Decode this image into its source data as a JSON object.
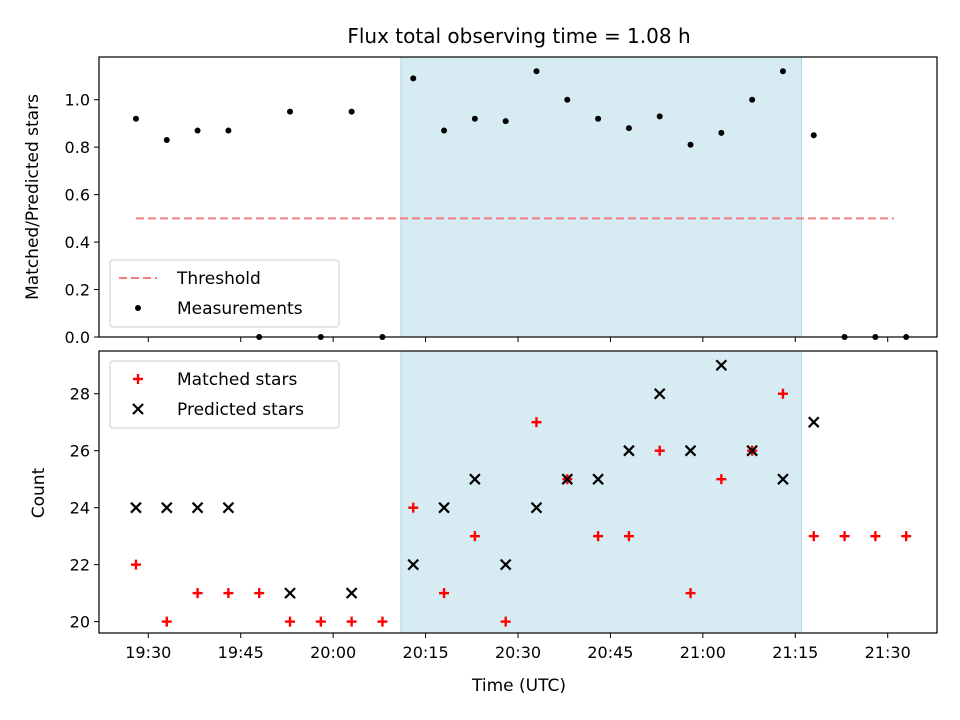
{
  "title": "Flux total observing time = 1.08 h",
  "colors": {
    "span": "#add8e6",
    "threshold": "#f08080",
    "matched": "#ff0000",
    "predicted": "#000000",
    "measurement": "#000000"
  },
  "chart_data": [
    {
      "type": "scatter",
      "ylabel": "Matched/Predicted stars",
      "ylim": [
        0,
        1.18
      ],
      "yticks": [
        0.0,
        0.2,
        0.4,
        0.6,
        0.8,
        1.0
      ],
      "ytick_labels": [
        "0.0",
        "0.2",
        "0.4",
        "0.6",
        "0.8",
        "1.0"
      ],
      "xlim": [
        "19:22",
        "21:38"
      ],
      "xticks": [
        "19:30",
        "19:45",
        "20:00",
        "20:15",
        "20:30",
        "20:45",
        "21:00",
        "21:15",
        "21:30"
      ],
      "highlight_span": [
        "20:11",
        "21:16"
      ],
      "threshold": {
        "label": "Threshold",
        "y": 0.5,
        "x_range": [
          "19:28",
          "21:31"
        ]
      },
      "series": [
        {
          "name": "Measurements",
          "x": [
            "19:28",
            "19:33",
            "19:38",
            "19:43",
            "19:48",
            "19:53",
            "19:58",
            "20:03",
            "20:08",
            "20:13",
            "20:18",
            "20:23",
            "20:28",
            "20:33",
            "20:38",
            "20:43",
            "20:48",
            "20:53",
            "20:58",
            "21:03",
            "21:08",
            "21:13",
            "21:18",
            "21:23",
            "21:28",
            "21:33"
          ],
          "y": [
            0.92,
            0.83,
            0.87,
            0.87,
            0.0,
            0.95,
            0.0,
            0.95,
            0.0,
            1.09,
            0.87,
            0.92,
            0.91,
            1.12,
            1.0,
            0.92,
            0.88,
            0.93,
            0.81,
            0.86,
            1.0,
            1.12,
            0.85,
            0.0,
            0.0,
            0.0
          ]
        }
      ],
      "legend": {
        "location": "lower-left",
        "entries": [
          "Threshold",
          "Measurements"
        ]
      }
    },
    {
      "type": "scatter",
      "xlabel": "Time (UTC)",
      "ylabel": "Count",
      "ylim": [
        19.6,
        29.5
      ],
      "yticks": [
        20,
        22,
        24,
        26,
        28
      ],
      "ytick_labels": [
        "20",
        "22",
        "24",
        "26",
        "28"
      ],
      "xlim": [
        "19:22",
        "21:38"
      ],
      "xticks": [
        "19:30",
        "19:45",
        "20:00",
        "20:15",
        "20:30",
        "20:45",
        "21:00",
        "21:15",
        "21:30"
      ],
      "xtick_labels": [
        "19:30",
        "19:45",
        "20:00",
        "20:15",
        "20:30",
        "20:45",
        "21:00",
        "21:15",
        "21:30"
      ],
      "highlight_span": [
        "20:11",
        "21:16"
      ],
      "series": [
        {
          "name": "Matched stars",
          "marker": "plus",
          "x": [
            "19:28",
            "19:33",
            "19:38",
            "19:43",
            "19:48",
            "19:53",
            "19:58",
            "20:03",
            "20:08",
            "20:13",
            "20:18",
            "20:23",
            "20:28",
            "20:33",
            "20:38",
            "20:43",
            "20:48",
            "20:53",
            "20:58",
            "21:03",
            "21:08",
            "21:13",
            "21:18",
            "21:23",
            "21:28",
            "21:33"
          ],
          "y": [
            22,
            20,
            21,
            21,
            21,
            20,
            20,
            20,
            20,
            24,
            21,
            23,
            20,
            27,
            25,
            23,
            23,
            26,
            21,
            25,
            26,
            28,
            23,
            23,
            23,
            23
          ]
        },
        {
          "name": "Predicted stars",
          "marker": "x",
          "x": [
            "19:28",
            "19:33",
            "19:38",
            "19:43",
            "19:53",
            "20:03",
            "20:13",
            "20:18",
            "20:23",
            "20:28",
            "20:33",
            "20:38",
            "20:43",
            "20:48",
            "20:53",
            "20:58",
            "21:03",
            "21:08",
            "21:13",
            "21:18"
          ],
          "y": [
            24,
            24,
            24,
            24,
            21,
            21,
            22,
            24,
            25,
            22,
            24,
            25,
            25,
            26,
            28,
            26,
            29,
            26,
            25,
            27
          ]
        }
      ],
      "legend": {
        "location": "upper-left",
        "entries": [
          "Matched stars",
          "Predicted stars"
        ]
      }
    }
  ]
}
